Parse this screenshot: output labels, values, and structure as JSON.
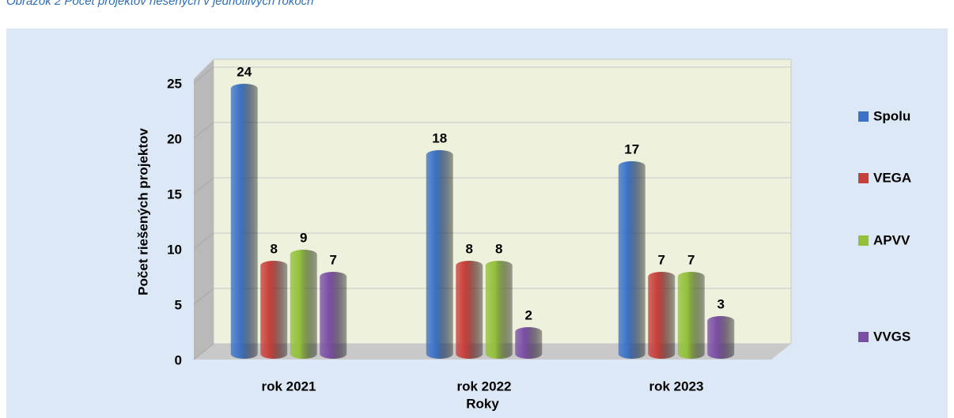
{
  "caption": "Obrázok 2 Počet projektov riešených v jednotlivých rokoch",
  "chart_data": {
    "type": "bar",
    "x_label": "Roky",
    "y_label": "Počet riešených projektov",
    "categories": [
      "rok 2021",
      "rok 2022",
      "rok 2023"
    ],
    "series": [
      {
        "name": "Spolu",
        "color": "#3b72c6",
        "values": [
          24,
          18,
          17
        ]
      },
      {
        "name": "VEGA",
        "color": "#c83e3a",
        "values": [
          8,
          8,
          7
        ]
      },
      {
        "name": "APVV",
        "color": "#93c13a",
        "values": [
          9,
          8,
          7
        ]
      },
      {
        "name": "VVGS",
        "color": "#7b4ea5",
        "values": [
          7,
          2,
          3
        ]
      }
    ],
    "ylim": [
      0,
      25
    ],
    "yticks": [
      0,
      5,
      10,
      15,
      20,
      25
    ],
    "grid": true,
    "legend": "right"
  }
}
